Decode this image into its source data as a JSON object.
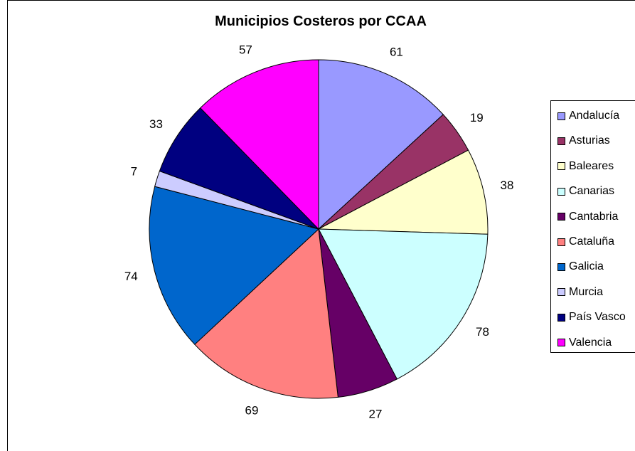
{
  "chart_data": {
    "type": "pie",
    "title": "Municipios Costeros por CCAA",
    "slices": [
      {
        "label": "Andalucía",
        "value": 61,
        "color": "#9999ff"
      },
      {
        "label": "Asturias",
        "value": 19,
        "color": "#993366"
      },
      {
        "label": "Baleares",
        "value": 38,
        "color": "#ffffcc"
      },
      {
        "label": "Canarias",
        "value": 78,
        "color": "#ccffff"
      },
      {
        "label": "Cantabria",
        "value": 27,
        "color": "#660066"
      },
      {
        "label": "Cataluña",
        "value": 69,
        "color": "#ff8080"
      },
      {
        "label": "Galicia",
        "value": 74,
        "color": "#0066cc"
      },
      {
        "label": "Murcia",
        "value": 7,
        "color": "#ccccff"
      },
      {
        "label": "País Vasco",
        "value": 33,
        "color": "#000080"
      },
      {
        "label": "Valencia",
        "value": 57,
        "color": "#ff00ff"
      }
    ],
    "start_angle_deg": 0,
    "direction": "clockwise",
    "legend_position": "right",
    "data_labels": "values"
  }
}
